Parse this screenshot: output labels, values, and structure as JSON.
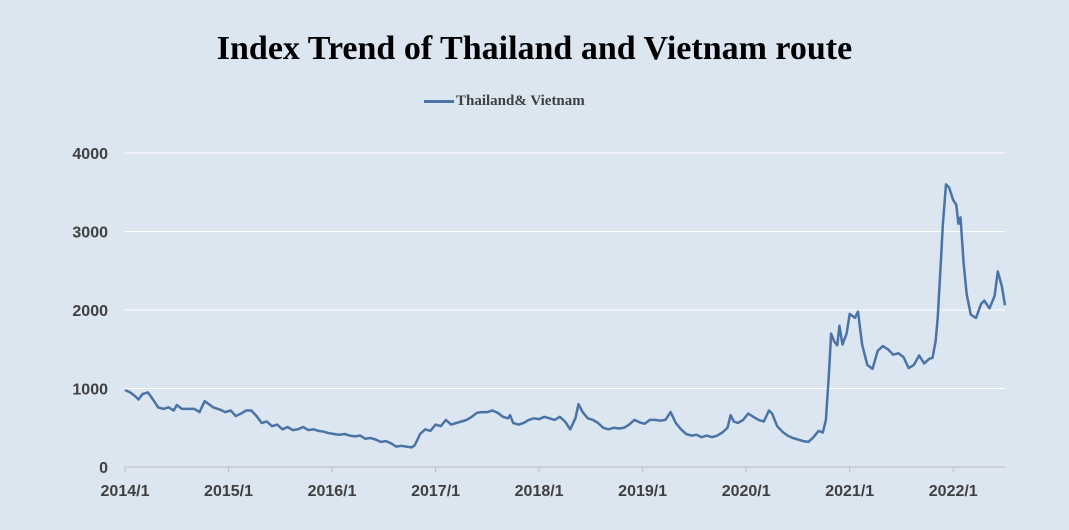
{
  "chart_data": {
    "type": "line",
    "title": "Index Trend of Thailand and Vietnam route",
    "xlabel": "",
    "ylabel": "",
    "ylim": [
      0,
      4000
    ],
    "yticks": [
      0,
      1000,
      2000,
      3000,
      4000
    ],
    "xlim": [
      2014.0,
      2022.5
    ],
    "xticks": [
      {
        "value": 2014,
        "label": "2014/1"
      },
      {
        "value": 2015,
        "label": "2015/1"
      },
      {
        "value": 2016,
        "label": "2016/1"
      },
      {
        "value": 2017,
        "label": "2017/1"
      },
      {
        "value": 2018,
        "label": "2018/1"
      },
      {
        "value": 2019,
        "label": "2019/1"
      },
      {
        "value": 2020,
        "label": "2020/1"
      },
      {
        "value": 2021,
        "label": "2021/1"
      },
      {
        "value": 2022,
        "label": "2022/1"
      }
    ],
    "grid": "horizontal",
    "legend_position": "top",
    "colors": {
      "series": "#4a73a6",
      "grid": "#ffffff",
      "axis": "#bfbfbf"
    },
    "series": [
      {
        "name": "Thailand& Vietnam",
        "points": [
          [
            2014.0,
            980
          ],
          [
            2014.05,
            950
          ],
          [
            2014.1,
            900
          ],
          [
            2014.13,
            860
          ],
          [
            2014.17,
            930
          ],
          [
            2014.22,
            950
          ],
          [
            2014.27,
            860
          ],
          [
            2014.32,
            760
          ],
          [
            2014.37,
            740
          ],
          [
            2014.42,
            760
          ],
          [
            2014.47,
            720
          ],
          [
            2014.5,
            790
          ],
          [
            2014.55,
            740
          ],
          [
            2014.62,
            740
          ],
          [
            2014.67,
            740
          ],
          [
            2014.72,
            700
          ],
          [
            2014.77,
            840
          ],
          [
            2014.8,
            810
          ],
          [
            2014.85,
            760
          ],
          [
            2014.92,
            730
          ],
          [
            2014.97,
            700
          ],
          [
            2015.02,
            720
          ],
          [
            2015.07,
            650
          ],
          [
            2015.12,
            680
          ],
          [
            2015.17,
            720
          ],
          [
            2015.22,
            720
          ],
          [
            2015.27,
            650
          ],
          [
            2015.32,
            560
          ],
          [
            2015.37,
            580
          ],
          [
            2015.42,
            520
          ],
          [
            2015.47,
            540
          ],
          [
            2015.52,
            480
          ],
          [
            2015.57,
            510
          ],
          [
            2015.62,
            470
          ],
          [
            2015.67,
            480
          ],
          [
            2015.72,
            510
          ],
          [
            2015.77,
            470
          ],
          [
            2015.82,
            480
          ],
          [
            2015.87,
            460
          ],
          [
            2015.92,
            450
          ],
          [
            2015.97,
            430
          ],
          [
            2016.02,
            420
          ],
          [
            2016.07,
            410
          ],
          [
            2016.12,
            420
          ],
          [
            2016.17,
            400
          ],
          [
            2016.22,
            390
          ],
          [
            2016.27,
            400
          ],
          [
            2016.32,
            360
          ],
          [
            2016.37,
            370
          ],
          [
            2016.42,
            350
          ],
          [
            2016.47,
            320
          ],
          [
            2016.52,
            330
          ],
          [
            2016.57,
            300
          ],
          [
            2016.62,
            260
          ],
          [
            2016.67,
            270
          ],
          [
            2016.72,
            260
          ],
          [
            2016.77,
            250
          ],
          [
            2016.8,
            280
          ],
          [
            2016.85,
            420
          ],
          [
            2016.9,
            480
          ],
          [
            2016.95,
            460
          ],
          [
            2017.0,
            540
          ],
          [
            2017.05,
            520
          ],
          [
            2017.1,
            600
          ],
          [
            2017.15,
            540
          ],
          [
            2017.2,
            560
          ],
          [
            2017.25,
            580
          ],
          [
            2017.3,
            600
          ],
          [
            2017.35,
            640
          ],
          [
            2017.4,
            690
          ],
          [
            2017.45,
            700
          ],
          [
            2017.5,
            700
          ],
          [
            2017.55,
            720
          ],
          [
            2017.6,
            690
          ],
          [
            2017.65,
            640
          ],
          [
            2017.7,
            620
          ],
          [
            2017.72,
            660
          ],
          [
            2017.75,
            560
          ],
          [
            2017.8,
            540
          ],
          [
            2017.85,
            560
          ],
          [
            2017.9,
            600
          ],
          [
            2017.95,
            620
          ],
          [
            2018.0,
            610
          ],
          [
            2018.05,
            640
          ],
          [
            2018.1,
            620
          ],
          [
            2018.15,
            600
          ],
          [
            2018.2,
            640
          ],
          [
            2018.25,
            580
          ],
          [
            2018.3,
            480
          ],
          [
            2018.35,
            620
          ],
          [
            2018.38,
            800
          ],
          [
            2018.42,
            700
          ],
          [
            2018.47,
            620
          ],
          [
            2018.52,
            600
          ],
          [
            2018.57,
            560
          ],
          [
            2018.62,
            500
          ],
          [
            2018.67,
            480
          ],
          [
            2018.72,
            500
          ],
          [
            2018.77,
            490
          ],
          [
            2018.82,
            500
          ],
          [
            2018.87,
            540
          ],
          [
            2018.92,
            600
          ],
          [
            2018.97,
            570
          ],
          [
            2019.02,
            550
          ],
          [
            2019.07,
            600
          ],
          [
            2019.12,
            600
          ],
          [
            2019.17,
            590
          ],
          [
            2019.22,
            600
          ],
          [
            2019.27,
            700
          ],
          [
            2019.32,
            560
          ],
          [
            2019.37,
            480
          ],
          [
            2019.42,
            420
          ],
          [
            2019.47,
            400
          ],
          [
            2019.52,
            410
          ],
          [
            2019.57,
            380
          ],
          [
            2019.62,
            400
          ],
          [
            2019.67,
            380
          ],
          [
            2019.72,
            400
          ],
          [
            2019.77,
            440
          ],
          [
            2019.82,
            500
          ],
          [
            2019.85,
            660
          ],
          [
            2019.88,
            580
          ],
          [
            2019.92,
            560
          ],
          [
            2019.97,
            600
          ],
          [
            2020.02,
            680
          ],
          [
            2020.07,
            640
          ],
          [
            2020.12,
            600
          ],
          [
            2020.17,
            580
          ],
          [
            2020.22,
            720
          ],
          [
            2020.25,
            680
          ],
          [
            2020.3,
            520
          ],
          [
            2020.35,
            450
          ],
          [
            2020.4,
            400
          ],
          [
            2020.45,
            370
          ],
          [
            2020.5,
            350
          ],
          [
            2020.55,
            330
          ],
          [
            2020.6,
            320
          ],
          [
            2020.65,
            380
          ],
          [
            2020.7,
            460
          ],
          [
            2020.74,
            440
          ],
          [
            2020.77,
            600
          ],
          [
            2020.8,
            1200
          ],
          [
            2020.82,
            1700
          ],
          [
            2020.85,
            1600
          ],
          [
            2020.88,
            1550
          ],
          [
            2020.9,
            1800
          ],
          [
            2020.93,
            1560
          ],
          [
            2020.97,
            1700
          ],
          [
            2021.0,
            1950
          ],
          [
            2021.05,
            1900
          ],
          [
            2021.08,
            1980
          ],
          [
            2021.12,
            1560
          ],
          [
            2021.17,
            1300
          ],
          [
            2021.22,
            1250
          ],
          [
            2021.27,
            1480
          ],
          [
            2021.32,
            1540
          ],
          [
            2021.37,
            1500
          ],
          [
            2021.42,
            1430
          ],
          [
            2021.47,
            1450
          ],
          [
            2021.52,
            1400
          ],
          [
            2021.57,
            1260
          ],
          [
            2021.62,
            1300
          ],
          [
            2021.67,
            1420
          ],
          [
            2021.72,
            1320
          ],
          [
            2021.77,
            1380
          ],
          [
            2021.8,
            1390
          ],
          [
            2021.83,
            1600
          ],
          [
            2021.85,
            1900
          ],
          [
            2021.88,
            2600
          ],
          [
            2021.9,
            3100
          ],
          [
            2021.93,
            3600
          ],
          [
            2021.96,
            3560
          ],
          [
            2022.0,
            3400
          ],
          [
            2022.03,
            3340
          ],
          [
            2022.05,
            3100
          ],
          [
            2022.07,
            3180
          ],
          [
            2022.1,
            2600
          ],
          [
            2022.13,
            2200
          ],
          [
            2022.17,
            1940
          ],
          [
            2022.22,
            1900
          ],
          [
            2022.27,
            2080
          ],
          [
            2022.3,
            2120
          ],
          [
            2022.35,
            2020
          ],
          [
            2022.4,
            2180
          ],
          [
            2022.43,
            2490
          ],
          [
            2022.47,
            2300
          ],
          [
            2022.5,
            2060
          ]
        ]
      }
    ]
  }
}
